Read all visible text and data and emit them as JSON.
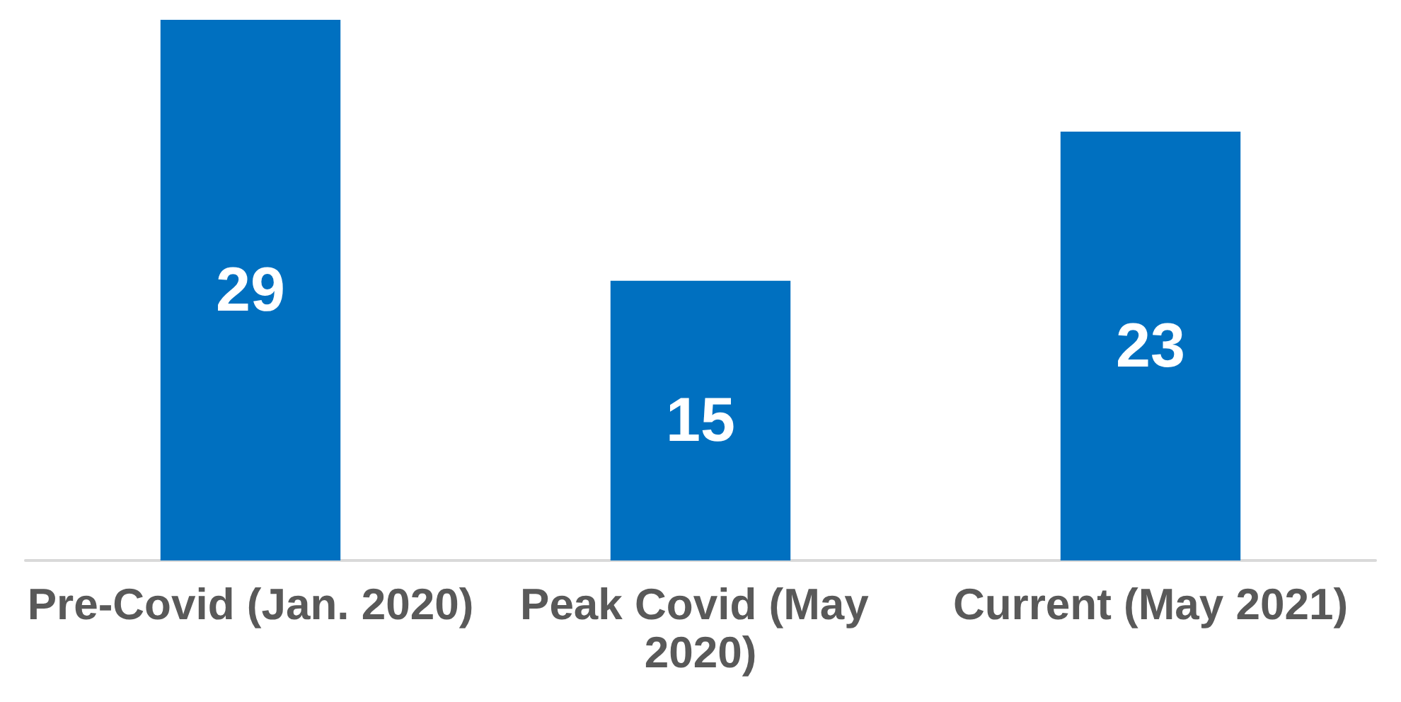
{
  "chart_data": {
    "type": "bar",
    "categories": [
      "Pre-Covid (Jan. 2020)",
      "Peak Covid (May 2020)",
      "Current (May 2021)"
    ],
    "values": [
      29,
      15,
      23
    ],
    "color": "#0070c0",
    "data_labels": true
  }
}
